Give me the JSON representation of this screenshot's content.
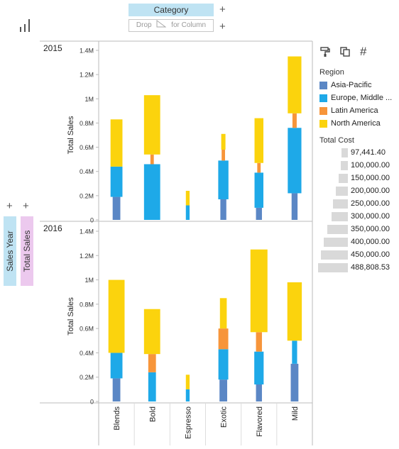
{
  "shelf": {
    "column_pill": "Category",
    "drop_hint": "Drop",
    "drop_hint_tail": "for Column",
    "row_pill_1": "Sales Year",
    "row_pill_2": "Total Sales",
    "plus": "+"
  },
  "icons": {
    "chart_type": "bar-chart-icon",
    "paint": "paint-roller-icon",
    "copy": "copy-icon",
    "hash": "#"
  },
  "legend": {
    "color_title": "Region",
    "regions": [
      {
        "name": "Asia-Pacific",
        "color": "#5b87c5"
      },
      {
        "name": "Europe, Middle ...",
        "color": "#1ea9e8"
      },
      {
        "name": "Latin America",
        "color": "#f7953a"
      },
      {
        "name": "North America",
        "color": "#fbd30d"
      }
    ],
    "size_title": "Total Cost",
    "sizes": [
      "97,441.40",
      "100,000.00",
      "150,000.00",
      "200,000.00",
      "250,000.00",
      "300,000.00",
      "350,000.00",
      "400,000.00",
      "450,000.00",
      "488,808.53"
    ],
    "size_fractions": [
      0.22,
      0.23,
      0.3,
      0.4,
      0.5,
      0.55,
      0.68,
      0.8,
      0.9,
      1.0
    ]
  },
  "chart_data": {
    "type": "bar",
    "stacked": true,
    "size_encoding": "Total Cost",
    "categories": [
      "Blends",
      "Bold",
      "Espresso",
      "Exotic",
      "Flavored",
      "Mild"
    ],
    "ylabel": "Total Sales",
    "y_ticks": [
      "0",
      "0.2M",
      "0.4M",
      "0.6M",
      "0.8M",
      "1M",
      "1.2M",
      "1.4M"
    ],
    "ylim": [
      0,
      1450000
    ],
    "series_names": [
      "Asia-Pacific",
      "Europe, Middle ...",
      "Latin America",
      "North America"
    ],
    "colors": [
      "#5b87c5",
      "#1ea9e8",
      "#f7953a",
      "#fbd30d"
    ],
    "panels": [
      {
        "label": "2015",
        "values": [
          [
            190000,
            250000,
            0,
            390000
          ],
          [
            0,
            460000,
            80000,
            490000
          ],
          [
            0,
            120000,
            0,
            120000
          ],
          [
            170000,
            320000,
            90000,
            130000
          ],
          [
            100000,
            290000,
            80000,
            370000
          ],
          [
            220000,
            540000,
            120000,
            470000
          ]
        ],
        "cost": [
          [
            0.45,
            0.7,
            0.0,
            0.7
          ],
          [
            0.0,
            0.95,
            0.2,
            0.95
          ],
          [
            0.0,
            0.22,
            0.0,
            0.22
          ],
          [
            0.35,
            0.6,
            0.2,
            0.25
          ],
          [
            0.35,
            0.52,
            0.2,
            0.52
          ],
          [
            0.35,
            0.8,
            0.25,
            0.8
          ]
        ]
      },
      {
        "label": "2016",
        "values": [
          [
            190000,
            210000,
            0,
            600000
          ],
          [
            0,
            240000,
            150000,
            370000
          ],
          [
            0,
            100000,
            0,
            120000
          ],
          [
            180000,
            250000,
            170000,
            250000
          ],
          [
            140000,
            270000,
            160000,
            680000
          ],
          [
            310000,
            190000,
            0,
            480000
          ]
        ],
        "cost": [
          [
            0.45,
            0.7,
            0.0,
            0.95
          ],
          [
            0.0,
            0.45,
            0.45,
            0.95
          ],
          [
            0.0,
            0.22,
            0.0,
            0.22
          ],
          [
            0.45,
            0.58,
            0.58,
            0.4
          ],
          [
            0.35,
            0.55,
            0.35,
            1.0
          ],
          [
            0.45,
            0.3,
            0.0,
            0.85
          ]
        ]
      }
    ]
  }
}
